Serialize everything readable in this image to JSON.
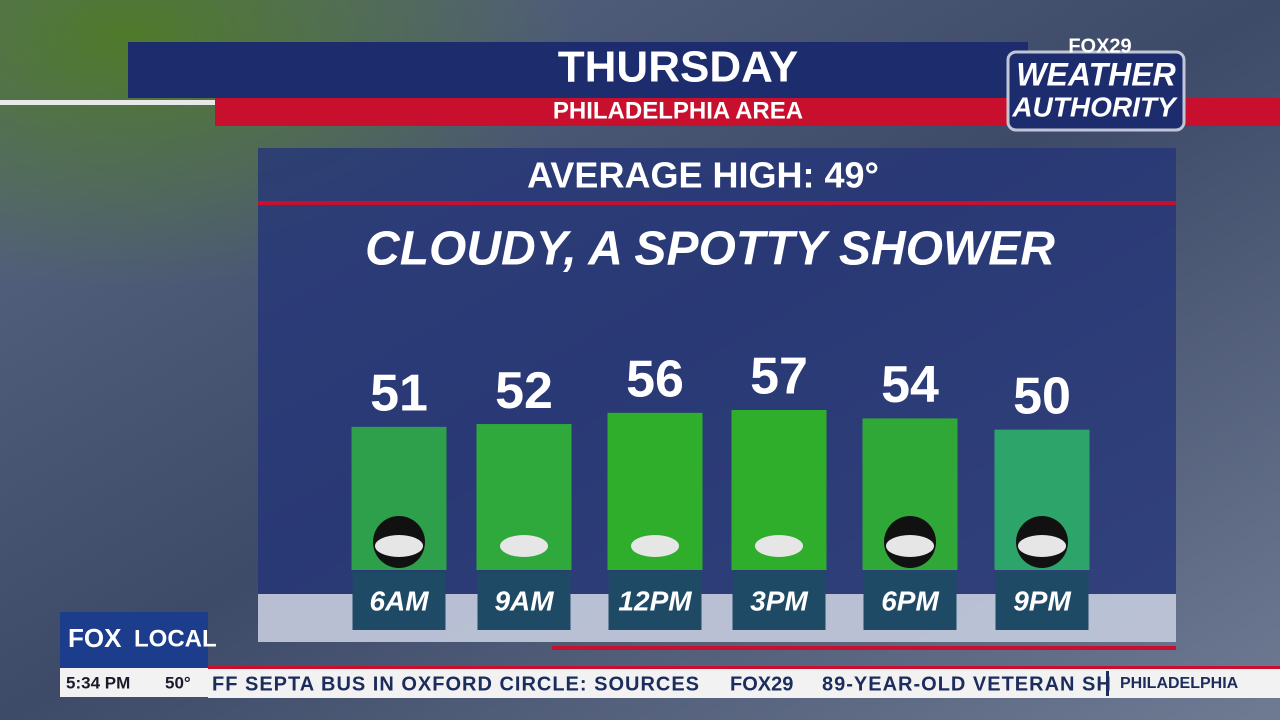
{
  "header": {
    "day": "THURSDAY",
    "region": "PHILADELPHIA AREA",
    "logo": {
      "station": "FOX29",
      "line1": "WEATHER",
      "line2": "AUTHORITY"
    }
  },
  "average_high": "AVERAGE HIGH: 49°",
  "condition": "CLOUDY, A SPOTTY SHOWER",
  "chart_data": {
    "type": "bar",
    "categories": [
      "6AM",
      "9AM",
      "12PM",
      "3PM",
      "6PM",
      "9PM"
    ],
    "values": [
      51,
      52,
      56,
      57,
      54,
      50
    ],
    "colors": [
      "#2e9f4a",
      "#2fa83c",
      "#2fae2c",
      "#2fae2c",
      "#2fa838",
      "#2da56a"
    ]
  },
  "corner": {
    "brand": "FOX",
    "channel": "LOCAL",
    "time": "5:34 PM",
    "temperature": "50°"
  },
  "ticker": {
    "story1": "FF SEPTA BUS IN OXFORD CIRCLE: SOURCES",
    "station": "FOX29",
    "story2": "89-YEAR-OLD VETERAN SH",
    "location": "PHILADELPHIA"
  }
}
